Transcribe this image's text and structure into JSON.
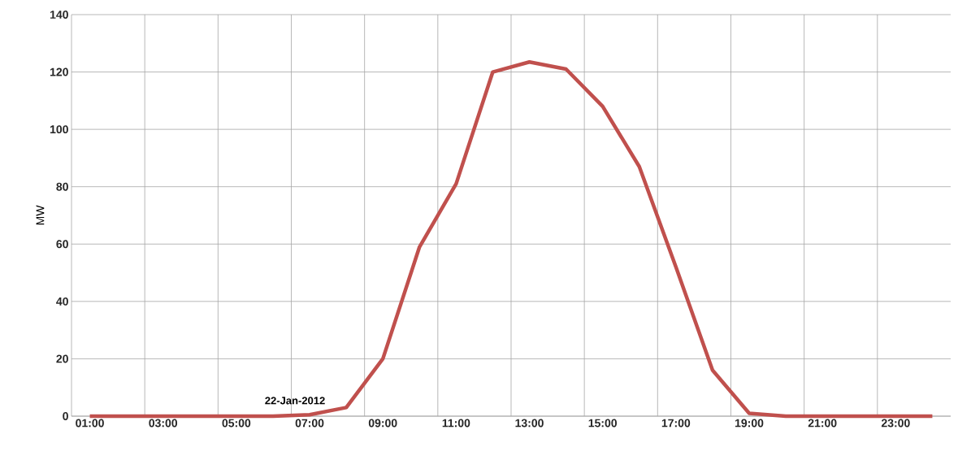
{
  "chart_data": {
    "type": "line",
    "ylabel": "MW",
    "categories": [
      "01:00",
      null,
      "03:00",
      null,
      "05:00",
      null,
      "07:00",
      null,
      "09:00",
      null,
      "11:00",
      null,
      "13:00",
      null,
      "15:00",
      null,
      "17:00",
      null,
      "19:00",
      null,
      "21:00",
      null,
      "23:00",
      null
    ],
    "series": [
      {
        "color": "#c0504d",
        "values": [
          0,
          0,
          0,
          0,
          0,
          0,
          0.5,
          3,
          20,
          59,
          81,
          120,
          123.5,
          121,
          108,
          87,
          52,
          16,
          1,
          0,
          0,
          0,
          0,
          0
        ]
      }
    ],
    "ylim": [
      0,
      140
    ],
    "yticks": [
      0,
      20,
      40,
      60,
      80,
      100,
      120,
      140
    ],
    "grid": true,
    "marker": "none",
    "line_style": "solid",
    "annotations": [
      {
        "text": "22-Jan-2012",
        "x": "07:00",
        "y": 0.5
      }
    ]
  }
}
